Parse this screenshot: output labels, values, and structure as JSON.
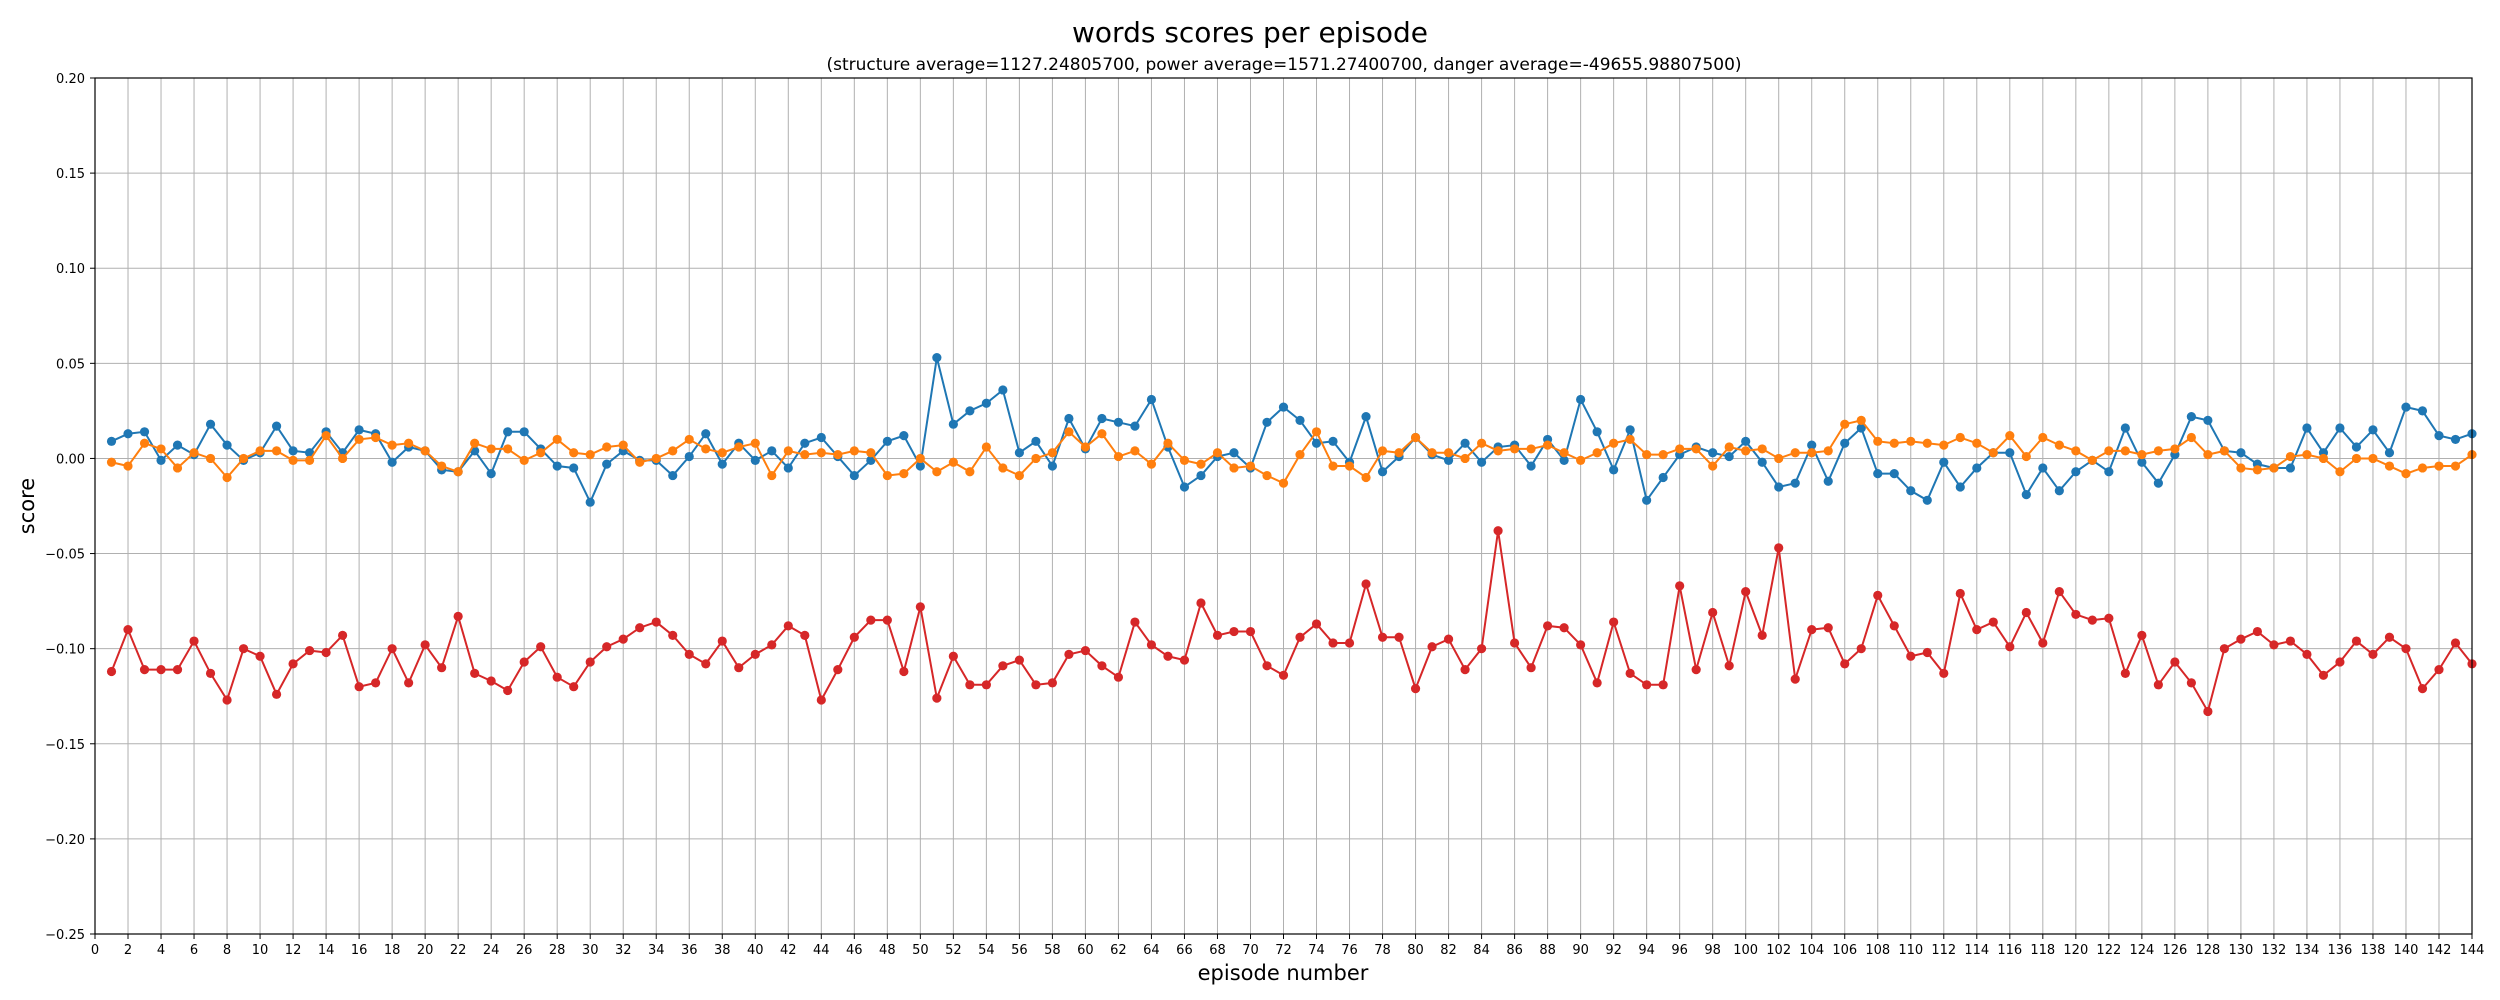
{
  "chart_data": {
    "type": "line",
    "title": "words scores per episode",
    "subtitle": "(structure average=1127.24805700, power average=1571.27400700, danger average=-49655.98807500)",
    "xlabel": "episode number",
    "ylabel": "score",
    "xlim": [
      0,
      144
    ],
    "ylim": [
      -0.25,
      0.2
    ],
    "x_ticks": [
      0,
      2,
      4,
      6,
      8,
      10,
      12,
      14,
      16,
      18,
      20,
      22,
      24,
      26,
      28,
      30,
      32,
      34,
      36,
      38,
      40,
      42,
      44,
      46,
      48,
      50,
      52,
      54,
      56,
      58,
      60,
      62,
      64,
      66,
      68,
      70,
      72,
      74,
      76,
      78,
      80,
      82,
      84,
      86,
      88,
      90,
      92,
      94,
      96,
      98,
      100,
      102,
      104,
      106,
      108,
      110,
      112,
      114,
      116,
      118,
      120,
      122,
      124,
      126,
      128,
      130,
      132,
      134,
      136,
      138,
      140,
      142,
      144
    ],
    "y_ticks": [
      0.2,
      0.15,
      0.1,
      0.05,
      0.0,
      -0.05,
      -0.1,
      -0.15,
      -0.2,
      -0.25
    ],
    "y_tick_labels": [
      "0.20",
      "0.15",
      "0.10",
      "0.05",
      "0.00",
      "−0.05",
      "−0.10",
      "−0.15",
      "−0.20",
      "−0.25"
    ],
    "grid": true,
    "x": [
      1,
      2,
      3,
      4,
      5,
      6,
      7,
      8,
      9,
      10,
      11,
      12,
      13,
      14,
      15,
      16,
      17,
      18,
      19,
      20,
      21,
      22,
      23,
      24,
      25,
      26,
      27,
      28,
      29,
      30,
      31,
      32,
      33,
      34,
      35,
      36,
      37,
      38,
      39,
      40,
      41,
      42,
      43,
      44,
      45,
      46,
      47,
      48,
      49,
      50,
      51,
      52,
      53,
      54,
      55,
      56,
      57,
      58,
      59,
      60,
      61,
      62,
      63,
      64,
      65,
      66,
      67,
      68,
      69,
      70,
      71,
      72,
      73,
      74,
      75,
      76,
      77,
      78,
      79,
      80,
      81,
      82,
      83,
      84,
      85,
      86,
      87,
      88,
      89,
      90,
      91,
      92,
      93,
      94,
      95,
      96,
      97,
      98,
      99,
      100,
      101,
      102,
      103,
      104,
      105,
      106,
      107,
      108,
      109,
      110,
      111,
      112,
      113,
      114,
      115,
      116,
      117,
      118,
      119,
      120,
      121,
      122,
      123,
      124,
      125,
      126,
      127,
      128,
      129,
      130,
      131,
      132,
      133,
      134,
      135,
      136,
      137,
      138,
      139,
      140,
      141,
      142,
      143,
      144
    ],
    "series": [
      {
        "color": "#1f77b4",
        "values": [
          0.009,
          0.013,
          0.014,
          -0.001,
          0.007,
          0.002,
          0.018,
          0.007,
          -0.001,
          0.003,
          0.017,
          0.004,
          0.003,
          0.014,
          0.003,
          0.015,
          0.013,
          -0.002,
          0.006,
          0.004,
          -0.006,
          -0.007,
          0.004,
          -0.008,
          0.014,
          0.014,
          0.005,
          -0.004,
          -0.005,
          -0.023,
          -0.003,
          0.004,
          -0.001,
          -0.001,
          -0.009,
          0.001,
          0.013,
          -0.003,
          0.008,
          -0.001,
          0.004,
          -0.005,
          0.008,
          0.011,
          0.001,
          -0.009,
          -0.001,
          0.009,
          0.012,
          -0.004,
          0.053,
          0.018,
          0.025,
          0.029,
          0.036,
          0.003,
          0.009,
          -0.004,
          0.021,
          0.005,
          0.021,
          0.019,
          0.017,
          0.031,
          0.006,
          -0.015,
          -0.009,
          0.001,
          0.003,
          -0.005,
          0.019,
          0.027,
          0.02,
          0.008,
          0.009,
          -0.002,
          0.022,
          -0.007,
          0.001,
          0.011,
          0.002,
          -0.001,
          0.008,
          -0.002,
          0.006,
          0.007,
          -0.004,
          0.01,
          -0.001,
          0.031,
          0.014,
          -0.006,
          0.015,
          -0.022,
          -0.01,
          0.002,
          0.006,
          0.003,
          0.001,
          0.009,
          -0.002,
          -0.015,
          -0.013,
          0.007,
          -0.012,
          0.008,
          0.016,
          -0.008,
          -0.008,
          -0.017,
          -0.022,
          -0.002,
          -0.015,
          -0.005,
          0.003,
          0.003,
          -0.019,
          -0.005,
          -0.017,
          -0.007,
          -0.001,
          -0.007,
          0.016,
          -0.002,
          -0.013,
          0.002,
          0.022,
          0.02,
          0.004,
          0.003,
          -0.003,
          -0.005,
          -0.005,
          0.016,
          0.003,
          0.016,
          0.006,
          0.015,
          0.003,
          0.027,
          0.025,
          0.012,
          0.01,
          0.013
        ]
      },
      {
        "color": "#ff7f0e",
        "values": [
          -0.002,
          -0.004,
          0.008,
          0.005,
          -0.005,
          0.003,
          0.0,
          -0.01,
          0.0,
          0.004,
          0.004,
          -0.001,
          -0.001,
          0.012,
          0.0,
          0.01,
          0.011,
          0.007,
          0.008,
          0.004,
          -0.004,
          -0.007,
          0.008,
          0.005,
          0.005,
          -0.001,
          0.003,
          0.01,
          0.003,
          0.002,
          0.006,
          0.007,
          -0.002,
          0.0,
          0.004,
          0.01,
          0.005,
          0.003,
          0.006,
          0.008,
          -0.009,
          0.004,
          0.002,
          0.003,
          0.002,
          0.004,
          0.003,
          -0.009,
          -0.008,
          0.0,
          -0.007,
          -0.002,
          -0.007,
          0.006,
          -0.005,
          -0.009,
          0.0,
          0.003,
          0.014,
          0.006,
          0.013,
          0.001,
          0.004,
          -0.003,
          0.008,
          -0.001,
          -0.003,
          0.003,
          -0.005,
          -0.004,
          -0.009,
          -0.013,
          0.002,
          0.014,
          -0.004,
          -0.004,
          -0.01,
          0.004,
          0.003,
          0.011,
          0.003,
          0.003,
          0.0,
          0.008,
          0.004,
          0.005,
          0.005,
          0.007,
          0.003,
          -0.001,
          0.003,
          0.008,
          0.01,
          0.002,
          0.002,
          0.005,
          0.005,
          -0.004,
          0.006,
          0.004,
          0.005,
          0.0,
          0.003,
          0.003,
          0.004,
          0.018,
          0.02,
          0.009,
          0.008,
          0.009,
          0.008,
          0.007,
          0.011,
          0.008,
          0.003,
          0.012,
          0.001,
          0.011,
          0.007,
          0.004,
          -0.001,
          0.004,
          0.004,
          0.002,
          0.004,
          0.005,
          0.011,
          0.002,
          0.004,
          -0.005,
          -0.006,
          -0.005,
          0.001,
          0.002,
          0.0,
          -0.007,
          0.0,
          0.0,
          -0.004,
          -0.008,
          -0.005,
          -0.004,
          -0.004,
          0.002
        ]
      },
      {
        "color": "#d62728",
        "values": [
          -0.112,
          -0.09,
          -0.111,
          -0.111,
          -0.111,
          -0.096,
          -0.113,
          -0.127,
          -0.1,
          -0.104,
          -0.124,
          -0.108,
          -0.101,
          -0.102,
          -0.093,
          -0.12,
          -0.118,
          -0.1,
          -0.118,
          -0.098,
          -0.11,
          -0.083,
          -0.113,
          -0.117,
          -0.122,
          -0.107,
          -0.099,
          -0.115,
          -0.12,
          -0.107,
          -0.099,
          -0.095,
          -0.089,
          -0.086,
          -0.093,
          -0.103,
          -0.108,
          -0.096,
          -0.11,
          -0.103,
          -0.098,
          -0.088,
          -0.093,
          -0.127,
          -0.111,
          -0.094,
          -0.085,
          -0.085,
          -0.112,
          -0.078,
          -0.126,
          -0.104,
          -0.119,
          -0.119,
          -0.109,
          -0.106,
          -0.119,
          -0.118,
          -0.103,
          -0.101,
          -0.109,
          -0.115,
          -0.086,
          -0.098,
          -0.104,
          -0.106,
          -0.076,
          -0.093,
          -0.091,
          -0.091,
          -0.109,
          -0.114,
          -0.094,
          -0.087,
          -0.097,
          -0.097,
          -0.066,
          -0.094,
          -0.094,
          -0.121,
          -0.099,
          -0.095,
          -0.111,
          -0.1,
          -0.038,
          -0.097,
          -0.11,
          -0.088,
          -0.089,
          -0.098,
          -0.118,
          -0.086,
          -0.113,
          -0.119,
          -0.119,
          -0.067,
          -0.111,
          -0.081,
          -0.109,
          -0.07,
          -0.093,
          -0.047,
          -0.116,
          -0.09,
          -0.089,
          -0.108,
          -0.1,
          -0.072,
          -0.088,
          -0.104,
          -0.102,
          -0.113,
          -0.071,
          -0.09,
          -0.086,
          -0.099,
          -0.081,
          -0.097,
          -0.07,
          -0.082,
          -0.085,
          -0.084,
          -0.113,
          -0.093,
          -0.119,
          -0.107,
          -0.118,
          -0.133,
          -0.1,
          -0.095,
          -0.091,
          -0.098,
          -0.096,
          -0.103,
          -0.114,
          -0.107,
          -0.096,
          -0.103,
          -0.094,
          -0.1,
          -0.121,
          -0.111,
          -0.097,
          -0.108
        ]
      }
    ]
  }
}
